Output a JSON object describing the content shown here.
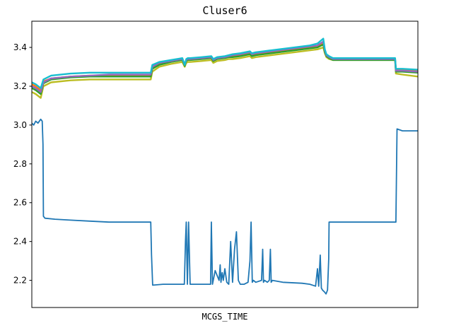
{
  "chart_data": {
    "type": "line",
    "title": "Cluser6",
    "xlabel": "MCGS_TIME",
    "ylabel": "",
    "ylim": [
      2.06,
      3.535
    ],
    "xlim": [
      0,
      100
    ],
    "yticks": [
      2.2,
      2.4,
      2.6,
      2.8,
      3.0,
      3.2,
      3.4
    ],
    "grid": false,
    "legend": "none",
    "series": [
      {
        "color": "#1f77b4",
        "x": [
          0,
          0.5,
          1,
          1.6,
          2.3,
          2.7,
          2.9,
          3.0,
          3.4,
          6,
          10,
          15,
          20,
          25,
          28,
          30.8,
          31.0,
          31.3,
          34,
          38,
          39.5,
          39.8,
          40.0,
          40.3,
          40.6,
          41.0,
          45,
          46.3,
          46.5,
          46.8,
          47.5,
          48.5,
          48.8,
          49.0,
          49.3,
          49.6,
          50.0,
          50.5,
          51.0,
          51.5,
          52.0,
          52.5,
          53.0,
          53.5,
          54.0,
          55.0,
          56.0,
          56.5,
          56.8,
          57.1,
          57.4,
          58,
          59.5,
          59.8,
          60.0,
          60.3,
          61,
          61.5,
          61.8,
          62.0,
          62.3,
          65,
          70,
          72,
          73.5,
          74.0,
          74.3,
          74.7,
          75,
          75.3,
          75.8,
          76.2,
          76.6,
          76.9,
          77.0,
          77.3,
          80,
          90,
          94.1,
          94.3,
          94.6,
          96,
          100
        ],
        "y": [
          3.01,
          3.0,
          3.02,
          3.01,
          3.03,
          3.02,
          2.9,
          2.53,
          2.52,
          2.515,
          2.51,
          2.505,
          2.5,
          2.5,
          2.5,
          2.5,
          2.33,
          2.175,
          2.18,
          2.18,
          2.18,
          2.4,
          2.5,
          2.18,
          2.5,
          2.18,
          2.18,
          2.18,
          2.5,
          2.18,
          2.25,
          2.2,
          2.28,
          2.19,
          2.24,
          2.2,
          2.26,
          2.19,
          2.18,
          2.4,
          2.19,
          2.36,
          2.45,
          2.2,
          2.18,
          2.18,
          2.19,
          2.3,
          2.5,
          2.19,
          2.2,
          2.19,
          2.2,
          2.36,
          2.19,
          2.2,
          2.19,
          2.2,
          2.36,
          2.19,
          2.2,
          2.19,
          2.185,
          2.18,
          2.17,
          2.26,
          2.17,
          2.33,
          2.16,
          2.15,
          2.14,
          2.13,
          2.15,
          2.31,
          2.5,
          2.5,
          2.5,
          2.5,
          2.5,
          2.5,
          2.98,
          2.97,
          2.97
        ]
      },
      {
        "color": "#ff7f0e",
        "x": [
          0,
          1,
          2.3,
          3.0,
          5,
          10,
          15,
          20,
          25,
          28,
          30.8,
          31.2,
          33,
          36,
          39,
          39.6,
          40.0,
          40.4,
          41,
          44,
          46.5,
          47,
          48,
          50,
          51,
          52,
          54,
          56.5,
          57,
          58,
          60,
          62,
          64,
          66,
          68,
          70,
          72,
          74,
          75.5,
          75.9,
          76.3,
          77,
          78,
          80,
          85,
          90,
          94.1,
          94.3,
          96,
          100
        ],
        "y": [
          3.21,
          3.2,
          3.18,
          3.225,
          3.24,
          3.25,
          3.255,
          3.255,
          3.255,
          3.255,
          3.255,
          3.295,
          3.315,
          3.33,
          3.34,
          3.31,
          3.335,
          3.34,
          3.34,
          3.345,
          3.35,
          3.335,
          3.345,
          3.35,
          3.355,
          3.355,
          3.36,
          3.37,
          3.36,
          3.365,
          3.37,
          3.375,
          3.38,
          3.385,
          3.39,
          3.395,
          3.4,
          3.405,
          3.425,
          3.38,
          3.36,
          3.35,
          3.34,
          3.34,
          3.34,
          3.34,
          3.34,
          3.285,
          3.285,
          3.28
        ]
      },
      {
        "color": "#2ca02c",
        "x": [
          0,
          1,
          2.3,
          3.0,
          5,
          10,
          15,
          20,
          25,
          28,
          30.8,
          31.2,
          33,
          36,
          39,
          39.6,
          40.0,
          40.4,
          41,
          44,
          46.5,
          47,
          48,
          50,
          51,
          52,
          54,
          56.5,
          57,
          58,
          60,
          62,
          64,
          66,
          68,
          70,
          72,
          74,
          75.5,
          75.9,
          76.3,
          77,
          78,
          80,
          85,
          90,
          94.1,
          94.3,
          96,
          100
        ],
        "y": [
          3.19,
          3.18,
          3.16,
          3.215,
          3.235,
          3.245,
          3.25,
          3.25,
          3.25,
          3.25,
          3.25,
          3.29,
          3.31,
          3.325,
          3.335,
          3.305,
          3.33,
          3.335,
          3.335,
          3.34,
          3.345,
          3.33,
          3.34,
          3.345,
          3.35,
          3.35,
          3.355,
          3.365,
          3.355,
          3.36,
          3.365,
          3.37,
          3.375,
          3.38,
          3.385,
          3.39,
          3.395,
          3.4,
          3.415,
          3.375,
          3.355,
          3.345,
          3.335,
          3.335,
          3.335,
          3.335,
          3.335,
          3.275,
          3.275,
          3.27
        ]
      },
      {
        "color": "#bcbd22",
        "x": [
          0,
          1,
          2.3,
          3.0,
          5,
          10,
          15,
          20,
          25,
          28,
          30.8,
          31.2,
          33,
          36,
          39,
          39.6,
          40.0,
          40.4,
          41,
          44,
          46.5,
          47,
          48,
          50,
          51,
          52,
          54,
          56.5,
          57,
          58,
          60,
          62,
          64,
          66,
          68,
          70,
          72,
          74,
          75.5,
          75.9,
          76.3,
          77,
          78,
          80,
          85,
          90,
          94.1,
          94.3,
          96,
          100
        ],
        "y": [
          3.17,
          3.16,
          3.14,
          3.2,
          3.22,
          3.23,
          3.235,
          3.235,
          3.235,
          3.235,
          3.235,
          3.275,
          3.3,
          3.315,
          3.325,
          3.3,
          3.32,
          3.325,
          3.325,
          3.33,
          3.335,
          3.32,
          3.33,
          3.335,
          3.34,
          3.34,
          3.345,
          3.355,
          3.345,
          3.35,
          3.355,
          3.36,
          3.365,
          3.37,
          3.375,
          3.38,
          3.385,
          3.39,
          3.4,
          3.37,
          3.35,
          3.34,
          3.335,
          3.335,
          3.335,
          3.335,
          3.335,
          3.265,
          3.26,
          3.25
        ]
      },
      {
        "color": "#9467bd",
        "x": [
          0,
          1,
          2.3,
          3.0,
          5,
          10,
          15,
          20,
          25,
          28,
          30.8,
          31.2,
          33,
          36,
          39,
          39.6,
          40.0,
          40.4,
          41,
          44,
          46.5,
          47,
          48,
          50,
          51,
          52,
          54,
          56.5,
          57,
          58,
          60,
          62,
          64,
          66,
          68,
          70,
          72,
          74,
          75.5,
          75.9,
          76.3,
          77,
          78,
          80,
          85,
          90,
          94.1,
          94.3,
          96,
          100
        ],
        "y": [
          3.2,
          3.19,
          3.17,
          3.22,
          3.24,
          3.25,
          3.255,
          3.26,
          3.26,
          3.26,
          3.26,
          3.3,
          3.32,
          3.33,
          3.34,
          3.31,
          3.335,
          3.34,
          3.34,
          3.345,
          3.35,
          3.335,
          3.345,
          3.35,
          3.355,
          3.36,
          3.365,
          3.375,
          3.365,
          3.37,
          3.375,
          3.38,
          3.385,
          3.39,
          3.395,
          3.4,
          3.405,
          3.41,
          3.43,
          3.385,
          3.36,
          3.35,
          3.34,
          3.34,
          3.34,
          3.34,
          3.34,
          3.28,
          3.28,
          3.275
        ]
      },
      {
        "color": "#17becf",
        "x": [
          0,
          1,
          2.3,
          3.0,
          5,
          10,
          15,
          20,
          25,
          28,
          30.8,
          31.2,
          33,
          36,
          39,
          39.6,
          40.0,
          40.4,
          41,
          44,
          46.5,
          47,
          48,
          50,
          51,
          52,
          54,
          56.5,
          57,
          58,
          60,
          62,
          64,
          66,
          68,
          70,
          72,
          74,
          75.5,
          75.9,
          76.3,
          77,
          78,
          80,
          85,
          90,
          94.1,
          94.3,
          96,
          100
        ],
        "y": [
          3.22,
          3.21,
          3.19,
          3.235,
          3.255,
          3.265,
          3.27,
          3.27,
          3.27,
          3.27,
          3.27,
          3.31,
          3.325,
          3.335,
          3.345,
          3.31,
          3.34,
          3.345,
          3.345,
          3.35,
          3.355,
          3.34,
          3.35,
          3.355,
          3.36,
          3.365,
          3.37,
          3.38,
          3.37,
          3.375,
          3.38,
          3.385,
          3.39,
          3.395,
          3.4,
          3.405,
          3.41,
          3.42,
          3.445,
          3.39,
          3.365,
          3.355,
          3.345,
          3.345,
          3.345,
          3.345,
          3.345,
          3.29,
          3.29,
          3.285
        ]
      }
    ]
  }
}
